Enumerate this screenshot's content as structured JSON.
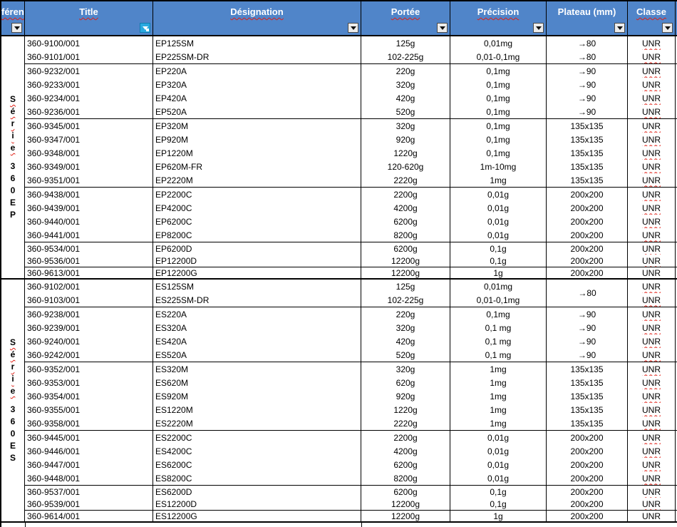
{
  "colors": {
    "header_bg": "#5085c9",
    "header_text": "#ffffff",
    "active_filter_button": "#29a9e0",
    "filter_button_bg": "#ececec",
    "squiggle_red": "#e01e14",
    "grid_border": "#000000"
  },
  "header": {
    "columns": [
      {
        "key": "reference",
        "label": "féren",
        "misspelled": true,
        "active_filter": false
      },
      {
        "key": "title",
        "label": "Title",
        "misspelled": true,
        "active_filter": true
      },
      {
        "key": "designation",
        "label": "Désignation",
        "misspelled": true,
        "active_filter": false
      },
      {
        "key": "portee",
        "label": "Portée",
        "misspelled": true,
        "active_filter": false
      },
      {
        "key": "precision",
        "label": "Précision",
        "misspelled": true,
        "active_filter": false
      },
      {
        "key": "plateau",
        "label": "Plateau (mm)",
        "misspelled": false,
        "active_filter": false
      },
      {
        "key": "classe",
        "label": "Classe",
        "misspelled": true,
        "active_filter": false
      }
    ]
  },
  "groups": [
    {
      "key": "serie-360ep",
      "label": {
        "word": "Série",
        "code": "360EP",
        "full": "Série 360EP"
      },
      "subgroups": [
        {
          "rows": [
            {
              "reference": "360-9100/001",
              "designation": "EP125SM",
              "portee": "125g",
              "precision": "0,01mg",
              "plateau": "→80",
              "classe": "UNR"
            },
            {
              "reference": "360-9101/001",
              "designation": "EP225SM-DR",
              "portee": "102-225g",
              "precision": "0,01-0,1mg",
              "plateau": "→80",
              "classe": "UNR"
            }
          ]
        },
        {
          "rows": [
            {
              "reference": "360-9232/001",
              "designation": "EP220A",
              "portee": "220g",
              "precision": "0,1mg",
              "plateau": "→90",
              "classe": "UNR"
            },
            {
              "reference": "360-9233/001",
              "designation": "EP320A",
              "portee": "320g",
              "precision": "0,1mg",
              "plateau": "→90",
              "classe": "UNR"
            },
            {
              "reference": "360-9234/001",
              "designation": "EP420A",
              "portee": "420g",
              "precision": "0,1mg",
              "plateau": "→90",
              "classe": "UNR"
            },
            {
              "reference": "360-9236/001",
              "designation": "EP520A",
              "portee": "520g",
              "precision": "0,1mg",
              "plateau": "→90",
              "classe": "UNR"
            }
          ]
        },
        {
          "rows": [
            {
              "reference": "360-9345/001",
              "designation": "EP320M",
              "portee": "320g",
              "precision": "0,1mg",
              "plateau": "135x135",
              "classe": "UNR"
            },
            {
              "reference": "360-9347/001",
              "designation": "EP920M",
              "portee": "920g",
              "precision": "0,1mg",
              "plateau": "135x135",
              "classe": "UNR"
            },
            {
              "reference": "360-9348/001",
              "designation": "EP1220M",
              "portee": "1220g",
              "precision": "0,1mg",
              "plateau": "135x135",
              "classe": "UNR"
            },
            {
              "reference": "360-9349/001",
              "designation": "EP620M-FR",
              "portee": "120-620g",
              "precision": "1m-10mg",
              "plateau": "135x135",
              "classe": "UNR"
            },
            {
              "reference": "360-9351/001",
              "designation": "EP2220M",
              "portee": "2220g",
              "precision": "1mg",
              "plateau": "135x135",
              "classe": "UNR"
            }
          ]
        },
        {
          "rows": [
            {
              "reference": "360-9438/001",
              "designation": "EP2200C",
              "portee": "2200g",
              "precision": "0,01g",
              "plateau": "200x200",
              "classe": "UNR"
            },
            {
              "reference": "360-9439/001",
              "designation": "EP4200C",
              "portee": "4200g",
              "precision": "0,01g",
              "plateau": "200x200",
              "classe": "UNR"
            },
            {
              "reference": "360-9440/001",
              "designation": "EP6200C",
              "portee": "6200g",
              "precision": "0,01g",
              "plateau": "200x200",
              "classe": "UNR"
            },
            {
              "reference": "360-9441/001",
              "designation": "EP8200C",
              "portee": "8200g",
              "precision": "0,01g",
              "plateau": "200x200",
              "classe": "UNR"
            }
          ]
        },
        {
          "rows": [
            {
              "reference": "360-9534/001",
              "designation": "EP6200D",
              "portee": "6200g",
              "precision": "0,1g",
              "plateau": "200x200",
              "classe": "UNR"
            },
            {
              "reference": "360-9536/001",
              "designation": "EP12200D",
              "portee": "12200g",
              "precision": "0,1g",
              "plateau": "200x200",
              "classe": "UNR"
            }
          ]
        },
        {
          "rows": [
            {
              "reference": "360-9613/001",
              "designation": "EP12200G",
              "portee": "12200g",
              "precision": "1g",
              "plateau": "200x200",
              "classe": "UNR"
            }
          ]
        }
      ]
    },
    {
      "key": "serie-360es",
      "label": {
        "word": "Série",
        "code": "360ES",
        "full": "Série 360ES"
      },
      "subgroups": [
        {
          "plateau_merged": "→80",
          "rows": [
            {
              "reference": "360-9102/001",
              "designation": "ES125SM",
              "portee": "125g",
              "precision": "0,01mg",
              "plateau": "",
              "classe": "UNR"
            },
            {
              "reference": "360-9103/001",
              "designation": "ES225SM-DR",
              "portee": "102-225g",
              "precision": "0,01-0,1mg",
              "plateau": "",
              "classe": "UNR"
            }
          ]
        },
        {
          "rows": [
            {
              "reference": "360-9238/001",
              "designation": "ES220A",
              "portee": "220g",
              "precision": "0,1mg",
              "plateau": "→90",
              "classe": "UNR"
            },
            {
              "reference": "360-9239/001",
              "designation": "ES320A",
              "portee": "320g",
              "precision": "0,1 mg",
              "plateau": "→90",
              "classe": "UNR"
            },
            {
              "reference": "360-9240/001",
              "designation": "ES420A",
              "portee": "420g",
              "precision": "0,1 mg",
              "plateau": "→90",
              "classe": "UNR"
            },
            {
              "reference": "360-9242/001",
              "designation": "ES520A",
              "portee": "520g",
              "precision": "0,1 mg",
              "plateau": "→90",
              "classe": "UNR"
            }
          ]
        },
        {
          "rows": [
            {
              "reference": "360-9352/001",
              "designation": "ES320M",
              "portee": "320g",
              "precision": "1mg",
              "plateau": "135x135",
              "classe": "UNR"
            },
            {
              "reference": "360-9353/001",
              "designation": "ES620M",
              "portee": "620g",
              "precision": "1mg",
              "plateau": "135x135",
              "classe": "UNR"
            },
            {
              "reference": "360-9354/001",
              "designation": "ES920M",
              "portee": "920g",
              "precision": "1mg",
              "plateau": "135x135",
              "classe": "UNR"
            },
            {
              "reference": "360-9355/001",
              "designation": "ES1220M",
              "portee": "1220g",
              "precision": "1mg",
              "plateau": "135x135",
              "classe": "UNR"
            },
            {
              "reference": "360-9358/001",
              "designation": "ES2220M",
              "portee": "2220g",
              "precision": "1mg",
              "plateau": "135x135",
              "classe": "UNR"
            }
          ]
        },
        {
          "rows": [
            {
              "reference": "360-9445/001",
              "designation": "ES2200C",
              "portee": "2200g",
              "precision": "0,01g",
              "plateau": "200x200",
              "classe": "UNR"
            },
            {
              "reference": "360-9446/001",
              "designation": "ES4200C",
              "portee": "4200g",
              "precision": "0,01g",
              "plateau": "200x200",
              "classe": "UNR"
            },
            {
              "reference": "360-9447/001",
              "designation": "ES6200C",
              "portee": "6200g",
              "precision": "0,01g",
              "plateau": "200x200",
              "classe": "UNR"
            },
            {
              "reference": "360-9448/001",
              "designation": "ES8200C",
              "portee": "8200g",
              "precision": "0,01g",
              "plateau": "200x200",
              "classe": "UNR"
            }
          ]
        },
        {
          "rows": [
            {
              "reference": "360-9537/001",
              "designation": "ES6200D",
              "portee": "6200g",
              "precision": "0,1g",
              "plateau": "200x200",
              "classe": "UNR"
            },
            {
              "reference": "360-9539/001",
              "designation": "ES12200D",
              "portee": "12200g",
              "precision": "0,1g",
              "plateau": "200x200",
              "classe": "UNR"
            }
          ]
        },
        {
          "rows": [
            {
              "reference": "360-9614/001",
              "designation": "ES12200G",
              "portee": "12200g",
              "precision": "1g",
              "plateau": "200x200",
              "classe": "UNR"
            }
          ]
        }
      ]
    }
  ]
}
